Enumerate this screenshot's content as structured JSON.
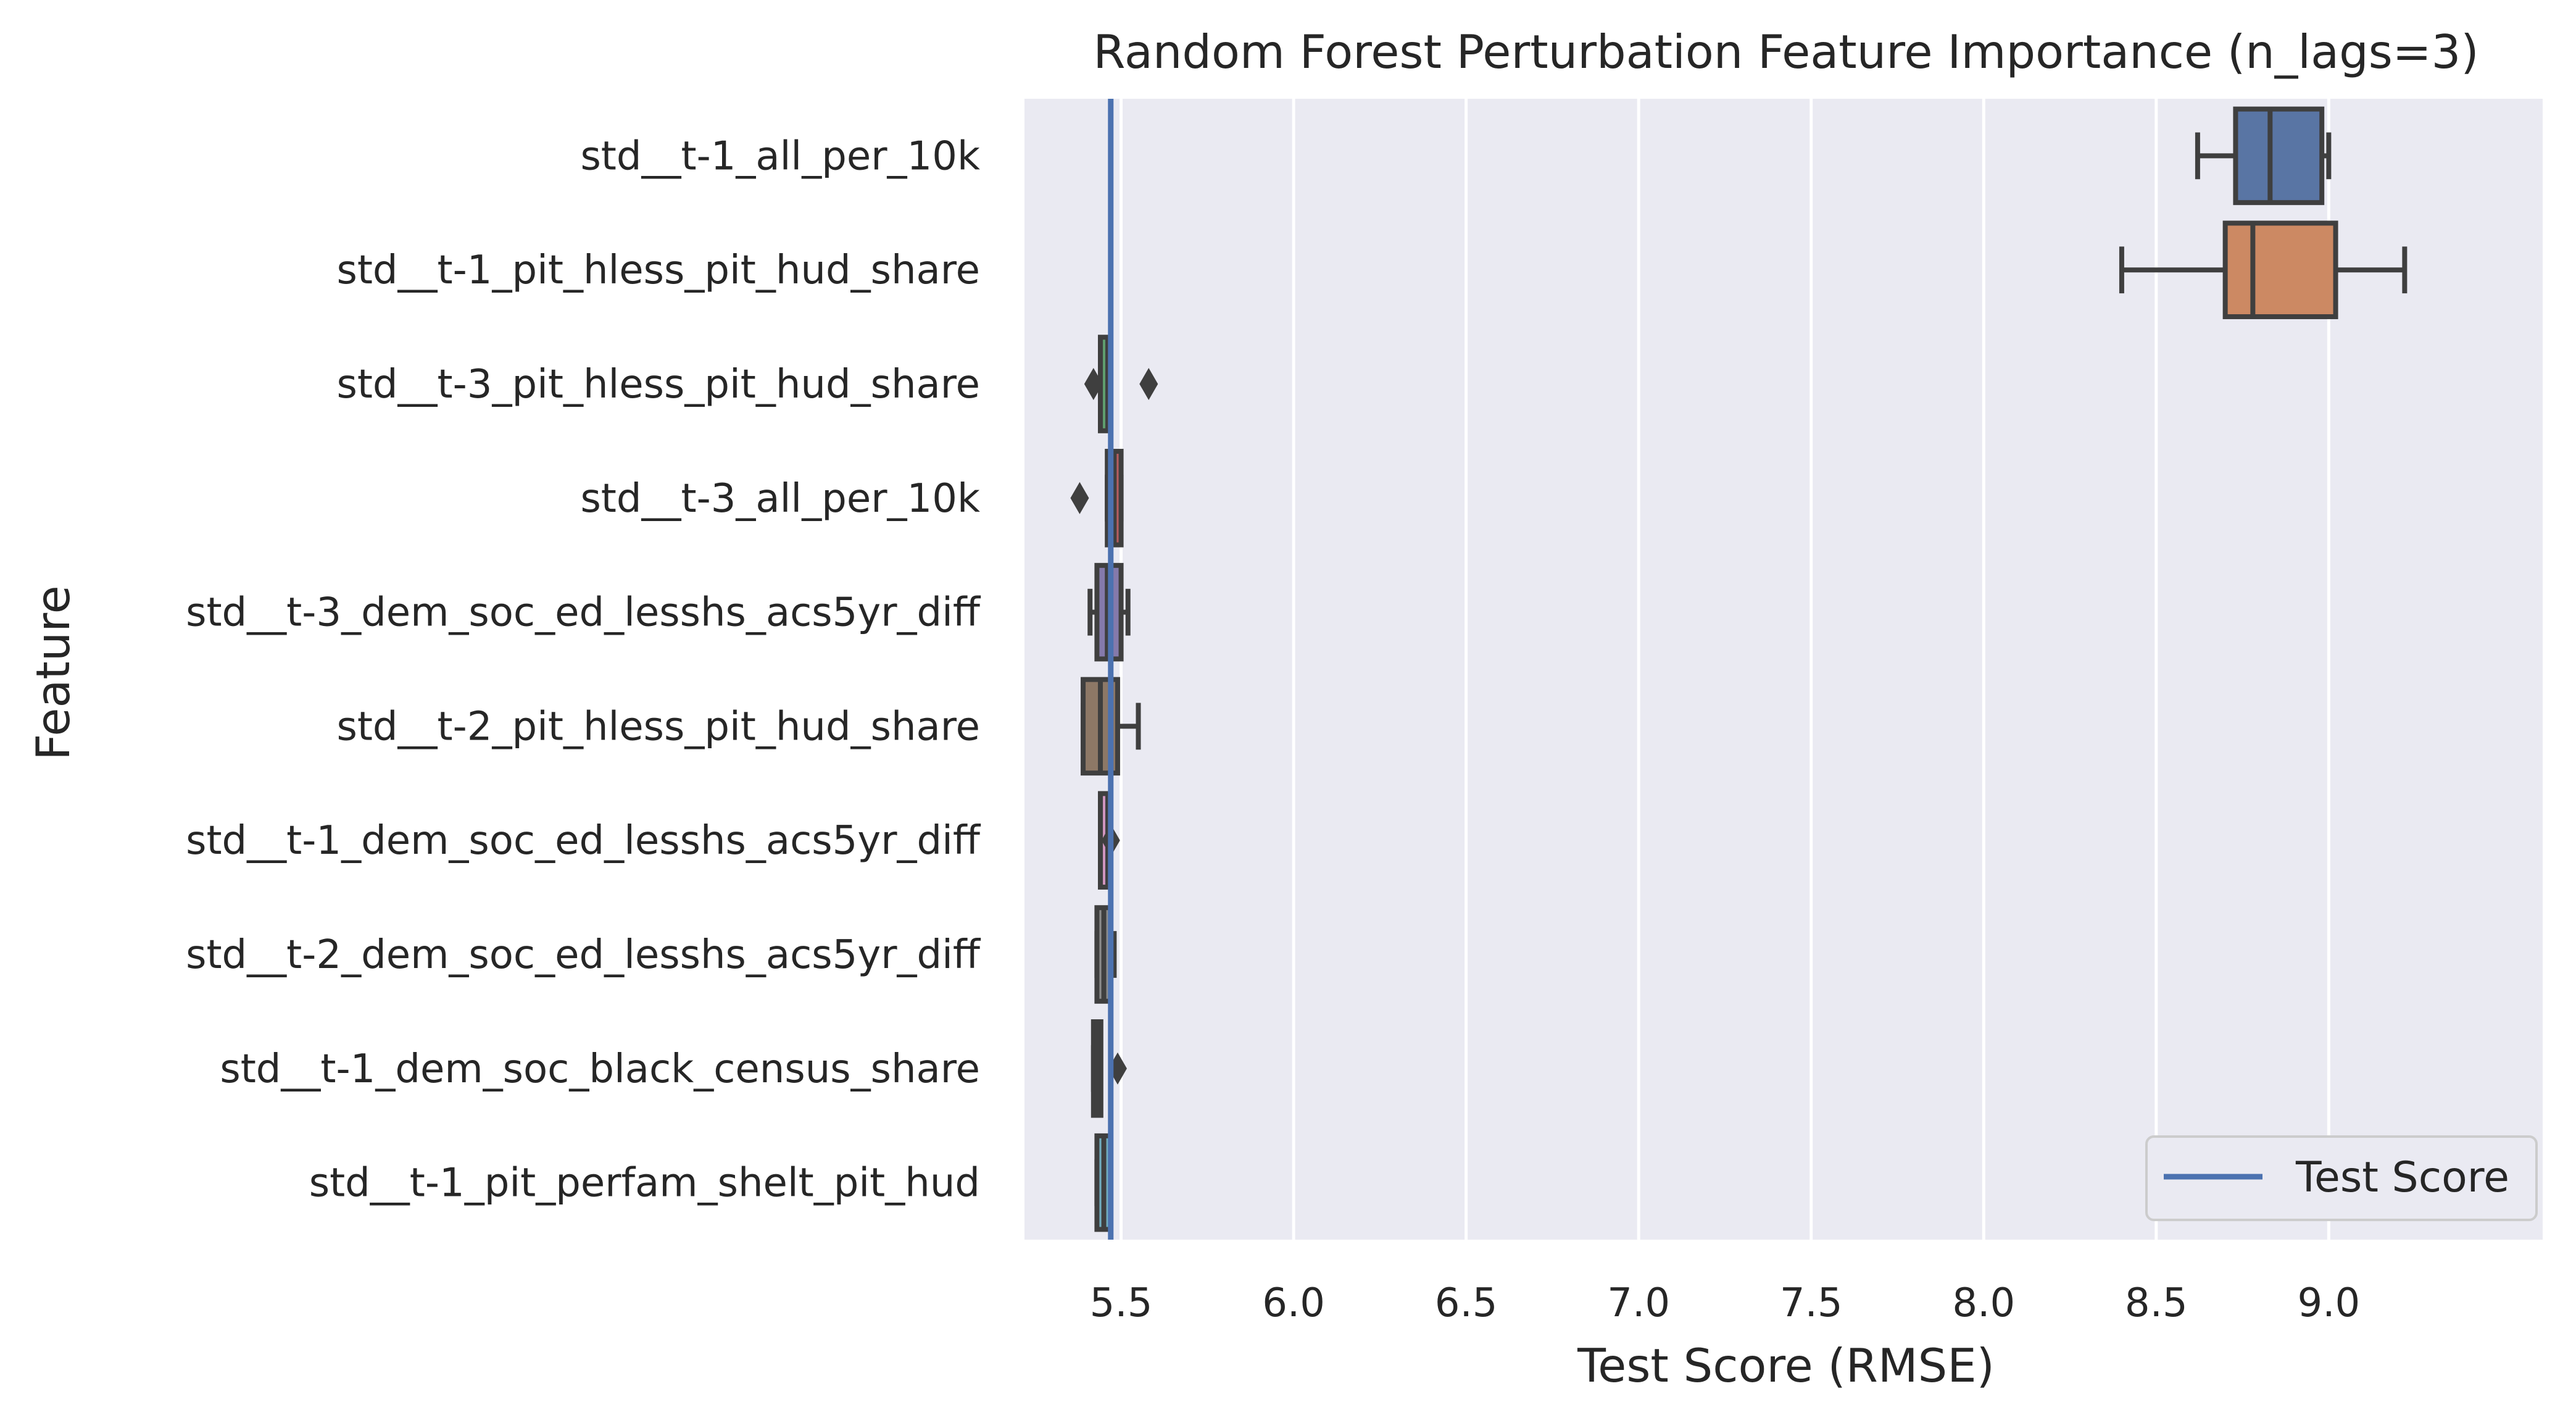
{
  "chart_data": {
    "type": "boxplot",
    "orientation": "horizontal",
    "title": "Random Forest Perturbation Feature Importance (n_lags=3)",
    "xlabel": "Test Score (RMSE)",
    "ylabel": "Feature",
    "xlim": [
      5.22,
      9.62
    ],
    "xticks": [
      5.5,
      6.0,
      6.5,
      7.0,
      7.5,
      8.0,
      8.5,
      9.0
    ],
    "xtick_labels": [
      "5.5",
      "6.0",
      "6.5",
      "7.0",
      "7.5",
      "8.0",
      "8.5",
      "9.0"
    ],
    "grid": "vertical",
    "background": "#eaeaf2",
    "legend": {
      "placement": "lower-right",
      "entries": [
        {
          "label": "Test Score",
          "color": "#4c72b0"
        }
      ]
    },
    "reference_line": {
      "label": "Test Score",
      "x": 5.47,
      "color": "#4c72b0"
    },
    "categories": [
      "std__t-1_all_per_10k",
      "std__t-1_pit_hless_pit_hud_share",
      "std__t-3_pit_hless_pit_hud_share",
      "std__t-3_all_per_10k",
      "std__t-3_dem_soc_ed_lesshs_acs5yr_diff",
      "std__t-2_pit_hless_pit_hud_share",
      "std__t-1_dem_soc_ed_lesshs_acs5yr_diff",
      "std__t-2_dem_soc_ed_lesshs_acs5yr_diff",
      "std__t-1_dem_soc_black_census_share",
      "std__t-1_pit_perfam_shelt_pit_hud"
    ],
    "boxes": [
      {
        "feature": "std__t-1_all_per_10k",
        "whislo": 8.62,
        "q1": 8.73,
        "med": 8.83,
        "q3": 8.98,
        "whishi": 9.0,
        "fliers": [],
        "color": "#5975a4"
      },
      {
        "feature": "std__t-1_pit_hless_pit_hud_share",
        "whislo": 8.4,
        "q1": 8.7,
        "med": 8.78,
        "q3": 9.02,
        "whishi": 9.22,
        "fliers": [],
        "color": "#cc8963"
      },
      {
        "feature": "std__t-3_pit_hless_pit_hud_share",
        "whislo": 5.44,
        "q1": 5.44,
        "med": 5.44,
        "q3": 5.45,
        "whishi": 5.45,
        "fliers": [
          5.42,
          5.58
        ],
        "color": "#5f9e6e"
      },
      {
        "feature": "std__t-3_all_per_10k",
        "whislo": 5.46,
        "q1": 5.46,
        "med": 5.48,
        "q3": 5.5,
        "whishi": 5.5,
        "fliers": [
          5.38
        ],
        "color": "#b55d60"
      },
      {
        "feature": "std__t-3_dem_soc_ed_lesshs_acs5yr_diff",
        "whislo": 5.41,
        "q1": 5.43,
        "med": 5.46,
        "q3": 5.5,
        "whishi": 5.52,
        "fliers": [],
        "color": "#857aab"
      },
      {
        "feature": "std__t-2_pit_hless_pit_hud_share",
        "whislo": 5.39,
        "q1": 5.39,
        "med": 5.44,
        "q3": 5.49,
        "whishi": 5.55,
        "fliers": [],
        "color": "#8d7866"
      },
      {
        "feature": "std__t-1_dem_soc_ed_lesshs_acs5yr_diff",
        "whislo": 5.44,
        "q1": 5.44,
        "med": 5.44,
        "q3": 5.45,
        "whishi": 5.45,
        "fliers": [
          5.47
        ],
        "color": "#d095bf"
      },
      {
        "feature": "std__t-2_dem_soc_ed_lesshs_acs5yr_diff",
        "whislo": 5.43,
        "q1": 5.43,
        "med": 5.45,
        "q3": 5.47,
        "whishi": 5.48,
        "fliers": [],
        "color": "#8c8c8c"
      },
      {
        "feature": "std__t-1_dem_soc_black_census_share",
        "whislo": 5.42,
        "q1": 5.42,
        "med": 5.43,
        "q3": 5.44,
        "whishi": 5.44,
        "fliers": [
          5.49
        ],
        "color": "#c1b37f"
      },
      {
        "feature": "std__t-1_pit_perfam_shelt_pit_hud",
        "whislo": 5.43,
        "q1": 5.43,
        "med": 5.45,
        "q3": 5.47,
        "whishi": 5.47,
        "fliers": [],
        "color": "#71aec0"
      }
    ]
  }
}
